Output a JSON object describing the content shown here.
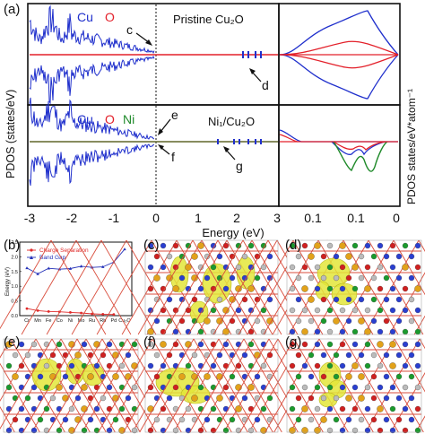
{
  "panels": {
    "a": {
      "label": "(a)",
      "ylabel_left": "PDOS (states/eV)",
      "ylabel_right": "PDOS states/eV*atom⁻¹",
      "xlabel": "Energy (eV)",
      "x_ticks": [
        "-3",
        "-2",
        "-1",
        "0",
        "1",
        "2",
        "3"
      ],
      "inset_ticks": [
        "0.1",
        "0.1",
        "0"
      ],
      "top_legend": [
        "Cu",
        "O"
      ],
      "top_title": "Pristine Cu₂O",
      "top_markers": [
        "c",
        "d"
      ],
      "bottom_legend": [
        "Cu",
        "O",
        "Ni"
      ],
      "bottom_title": "Ni₁/Cu₂O",
      "bottom_markers": [
        "e",
        "f",
        "g"
      ]
    },
    "b": {
      "label": "(b)",
      "ylabel": "Energy (eV)",
      "y_ticks": [
        "0.0",
        "0.5",
        "1.0",
        "1.5",
        "2.0",
        "2.5"
      ],
      "legend": [
        "Charge Separation",
        "Band Gap"
      ]
    },
    "c": {
      "label": "(c)"
    },
    "d": {
      "label": "(d)"
    },
    "e": {
      "label": "(e)"
    },
    "f": {
      "label": "(f)"
    },
    "g": {
      "label": "(g)"
    }
  },
  "colors": {
    "cu": "#1f2fcc",
    "o": "#e3202a",
    "ni": "#1f8a2a",
    "gap": "#2431b8",
    "charge": "#e02a2a",
    "iso": "#e3e63a",
    "bond": "#d94d3c"
  },
  "chart_data": [
    {
      "type": "line",
      "panel": "b",
      "ylabel": "Energy (eV)",
      "ylim": [
        0,
        2.5
      ],
      "categories": [
        "Cr",
        "Mn",
        "Fe",
        "Co",
        "Ni",
        "Mo",
        "Ru",
        "Rh",
        "Pd",
        "Cu₂O"
      ],
      "series": [
        {
          "name": "Charge Separation",
          "values": [
            0.24,
            0.17,
            0.14,
            0.13,
            0.11,
            0.09,
            0.06,
            0.05,
            0.04,
            null
          ]
        },
        {
          "name": "Band Gap",
          "values": [
            1.62,
            1.42,
            1.61,
            1.58,
            1.6,
            1.68,
            1.64,
            1.66,
            1.82,
            2.26
          ]
        }
      ]
    }
  ]
}
